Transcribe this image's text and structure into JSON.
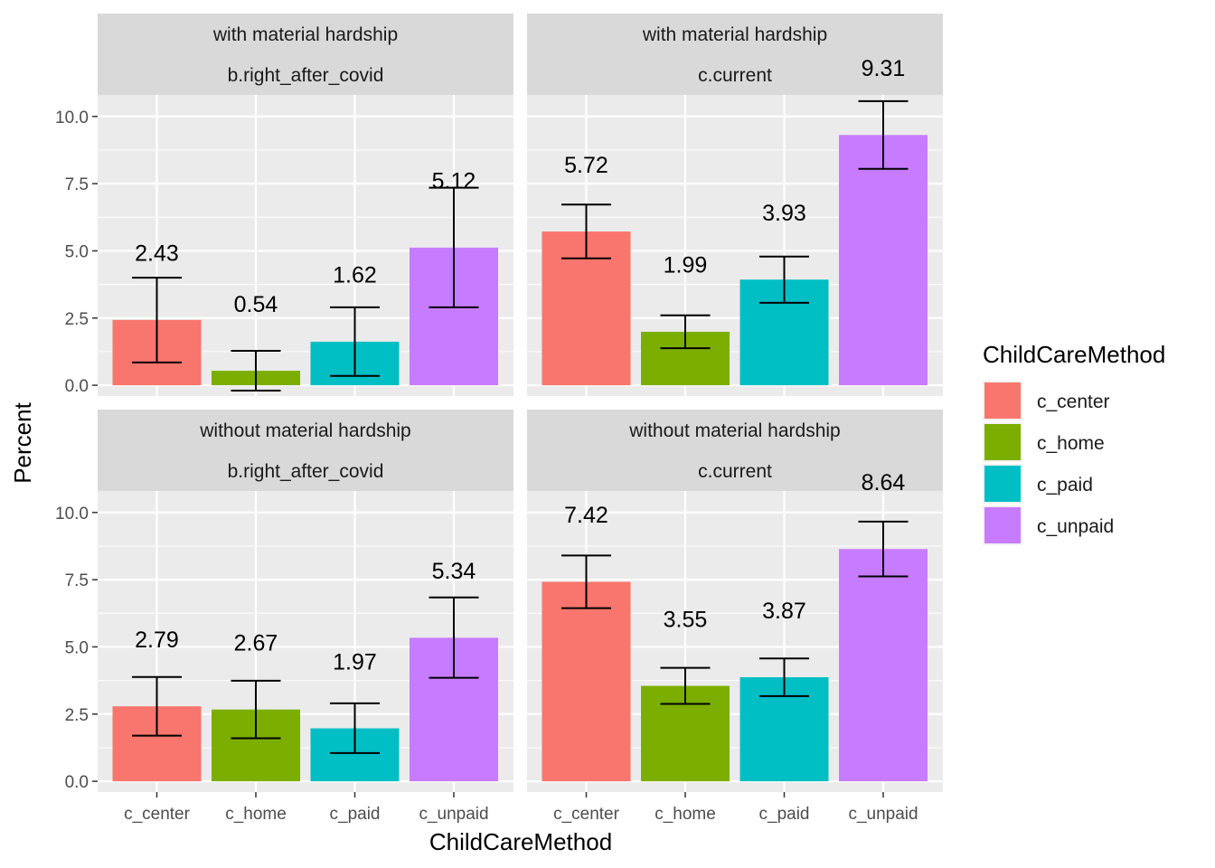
{
  "chart_data": {
    "type": "bar",
    "xlabel": "ChildCareMethod",
    "ylabel": "Percent",
    "categories": [
      "c_center",
      "c_home",
      "c_paid",
      "c_unpaid"
    ],
    "ylim": [
      -0.4,
      10.8
    ],
    "yticks": [
      0.0,
      2.5,
      5.0,
      7.5,
      10.0
    ],
    "ytick_labels": [
      "0.0",
      "2.5",
      "5.0",
      "7.5",
      "10.0"
    ],
    "grid": true,
    "legend": {
      "title": "ChildCareMethod",
      "placement": "right",
      "entries": [
        "c_center",
        "c_home",
        "c_paid",
        "c_unpaid"
      ]
    },
    "colors": {
      "c_center": "#F8766D",
      "c_home": "#7CAE00",
      "c_paid": "#00BFC4",
      "c_unpaid": "#C77CFF"
    },
    "panels": [
      {
        "strip_top": "with material hardship",
        "strip_bottom": "b.right_after_covid",
        "values": [
          2.43,
          0.54,
          1.62,
          5.12
        ],
        "labels": [
          "2.43",
          "0.54",
          "1.62",
          "5.12"
        ],
        "error_low": [
          0.85,
          -0.2,
          0.35,
          2.9
        ],
        "error_high": [
          4.0,
          1.28,
          2.9,
          7.35
        ]
      },
      {
        "strip_top": "with material hardship",
        "strip_bottom": "c.current",
        "values": [
          5.72,
          1.99,
          3.93,
          9.31
        ],
        "labels": [
          "5.72",
          "1.99",
          "3.93",
          "9.31"
        ],
        "error_low": [
          4.72,
          1.38,
          3.07,
          8.05
        ],
        "error_high": [
          6.72,
          2.6,
          4.79,
          10.57
        ]
      },
      {
        "strip_top": "without material hardship",
        "strip_bottom": "b.right_after_covid",
        "values": [
          2.79,
          2.67,
          1.97,
          5.34
        ],
        "labels": [
          "2.79",
          "2.67",
          "1.97",
          "5.34"
        ],
        "error_low": [
          1.7,
          1.6,
          1.05,
          3.85
        ],
        "error_high": [
          3.88,
          3.74,
          2.9,
          6.84
        ]
      },
      {
        "strip_top": "without material hardship",
        "strip_bottom": "c.current",
        "values": [
          7.42,
          3.55,
          3.87,
          8.64
        ],
        "labels": [
          "7.42",
          "3.55",
          "3.87",
          "8.64"
        ],
        "error_low": [
          6.44,
          2.88,
          3.17,
          7.62
        ],
        "error_high": [
          8.4,
          4.22,
          4.57,
          9.66
        ]
      }
    ]
  }
}
